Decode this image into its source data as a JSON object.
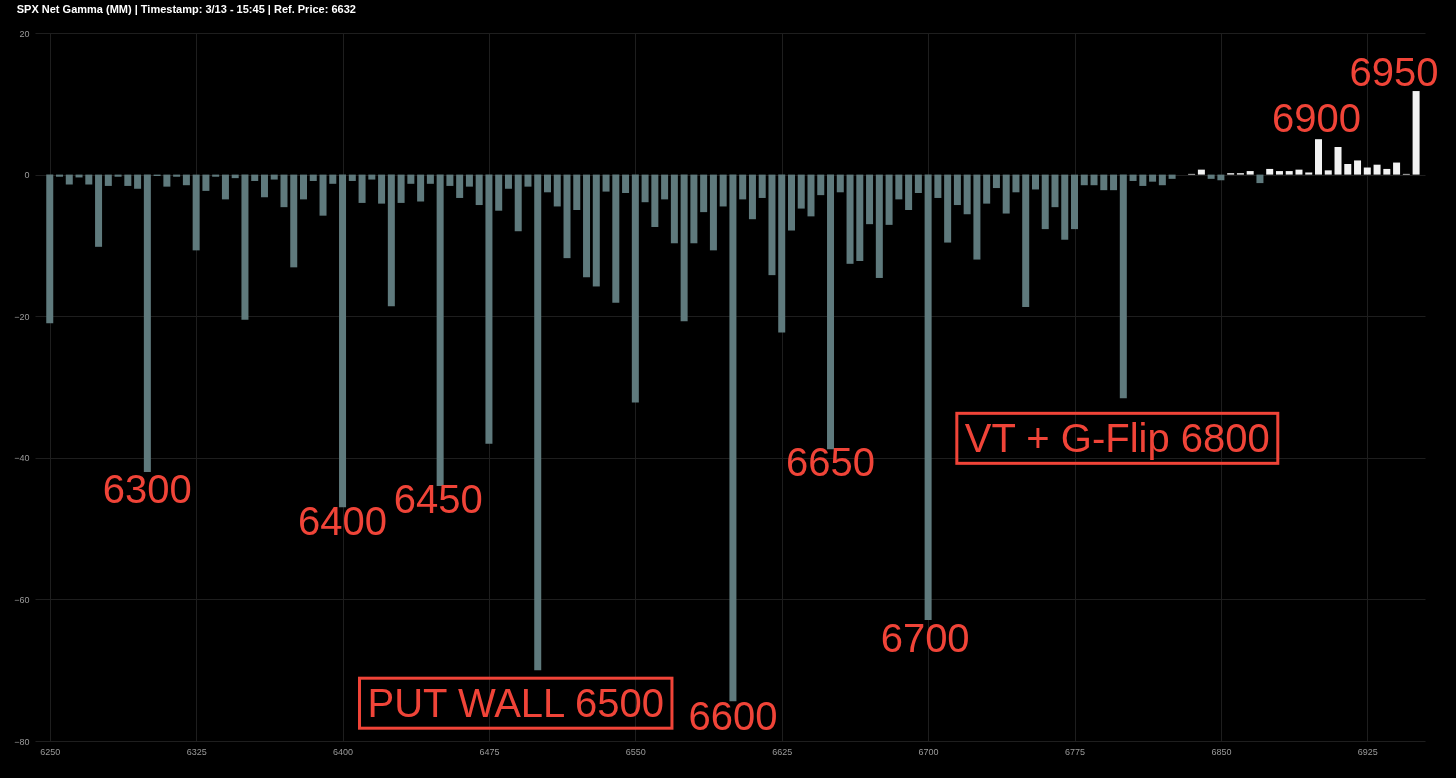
{
  "chart_data": {
    "type": "bar",
    "title": "SPX Net Gamma (MM) | Timestamp: 3/13 - 15:45  | Ref. Price: 6632",
    "x": [
      6250,
      6255,
      6260,
      6265,
      6270,
      6275,
      6280,
      6285,
      6290,
      6295,
      6300,
      6305,
      6310,
      6315,
      6320,
      6325,
      6330,
      6335,
      6340,
      6345,
      6350,
      6355,
      6360,
      6365,
      6370,
      6375,
      6380,
      6385,
      6390,
      6395,
      6400,
      6405,
      6410,
      6415,
      6420,
      6425,
      6430,
      6435,
      6440,
      6445,
      6450,
      6455,
      6460,
      6465,
      6470,
      6475,
      6480,
      6485,
      6490,
      6495,
      6500,
      6505,
      6510,
      6515,
      6520,
      6525,
      6530,
      6535,
      6540,
      6545,
      6550,
      6555,
      6560,
      6565,
      6570,
      6575,
      6580,
      6585,
      6590,
      6595,
      6600,
      6605,
      6610,
      6615,
      6620,
      6625,
      6630,
      6635,
      6640,
      6645,
      6650,
      6655,
      6660,
      6665,
      6670,
      6675,
      6680,
      6685,
      6690,
      6695,
      6700,
      6705,
      6710,
      6715,
      6720,
      6725,
      6730,
      6735,
      6740,
      6745,
      6750,
      6755,
      6760,
      6765,
      6770,
      6775,
      6780,
      6785,
      6790,
      6795,
      6800,
      6805,
      6810,
      6815,
      6820,
      6825,
      6830,
      6835,
      6840,
      6845,
      6850,
      6855,
      6860,
      6865,
      6870,
      6875,
      6880,
      6885,
      6890,
      6895,
      6900,
      6905,
      6910,
      6915,
      6920,
      6925,
      6930,
      6935,
      6940,
      6945,
      6950
    ],
    "values": [
      -21,
      -0.3,
      -1.4,
      -0.4,
      -1.4,
      -10.2,
      -1.6,
      -0.3,
      -1.6,
      -2.0,
      -42,
      -0.2,
      -1.7,
      -0.3,
      -1.5,
      -10.7,
      -2.3,
      -0.3,
      -3.5,
      -0.5,
      -20.5,
      -0.9,
      -3.2,
      -0.7,
      -4.6,
      -13.1,
      -3.5,
      -0.9,
      -5.8,
      -1.3,
      -47,
      -0.9,
      -4.0,
      -0.7,
      -4.1,
      -18.6,
      -4.0,
      -1.3,
      -3.8,
      -1.3,
      -44,
      -1.6,
      -3.3,
      -1.7,
      -4.3,
      -38,
      -5.1,
      -2.0,
      -8.0,
      -1.7,
      -70,
      -2.5,
      -4.5,
      -11.8,
      -5.0,
      -14.5,
      -15.8,
      -2.4,
      -18.1,
      -2.6,
      -32.2,
      -3.9,
      -7.4,
      -3.5,
      -9.7,
      -20.7,
      -9.7,
      -5.3,
      -10.7,
      -4.5,
      -74.4,
      -3.5,
      -6.3,
      -3.3,
      -14.2,
      -22.3,
      -7.9,
      -4.8,
      -5.9,
      -2.9,
      -38.8,
      -2.5,
      -12.6,
      -12.2,
      -7.0,
      -14.6,
      -7.1,
      -3.5,
      -5.0,
      -2.6,
      -62.9,
      -3.3,
      -9.6,
      -4.3,
      -5.6,
      -12.0,
      -4.1,
      -1.9,
      -5.5,
      -2.5,
      -18.7,
      -2.1,
      -7.7,
      -4.6,
      -9.2,
      -7.7,
      -1.5,
      -1.5,
      -2.2,
      -2.2,
      -31.6,
      -0.9,
      -1.6,
      -1.0,
      -1.5,
      -0.6,
      null,
      0.1,
      0.7,
      -0.6,
      -0.8,
      0.2,
      0.2,
      0.5,
      -1.2,
      0.8,
      0.5,
      0.5,
      0.7,
      0.3,
      5.0,
      0.6,
      3.9,
      1.5,
      2.0,
      1.0,
      1.4,
      0.8,
      1.7,
      0.1,
      11.8
    ],
    "colors": [
      "#5f7a7d",
      "#5f7a7d",
      "#5f7a7d",
      "#5f7a7d",
      "#5f7a7d",
      "#5f7a7d",
      "#5f7a7d",
      "#5f7a7d",
      "#5f7a7d",
      "#5f7a7d",
      "#5f7a7d",
      "#5f7a7d",
      "#5f7a7d",
      "#5f7a7d",
      "#5f7a7d",
      "#5f7a7d",
      "#5f7a7d",
      "#5f7a7d",
      "#5f7a7d",
      "#5f7a7d",
      "#5f7a7d",
      "#5f7a7d",
      "#5f7a7d",
      "#5f7a7d",
      "#5f7a7d",
      "#5f7a7d",
      "#5f7a7d",
      "#5f7a7d",
      "#5f7a7d",
      "#5f7a7d",
      "#5f7a7d",
      "#5f7a7d",
      "#5f7a7d",
      "#5f7a7d",
      "#5f7a7d",
      "#5f7a7d",
      "#5f7a7d",
      "#5f7a7d",
      "#5f7a7d",
      "#5f7a7d",
      "#5f7a7d",
      "#5f7a7d",
      "#5f7a7d",
      "#5f7a7d",
      "#5f7a7d",
      "#5f7a7d",
      "#5f7a7d",
      "#5f7a7d",
      "#5f7a7d",
      "#5f7a7d",
      "#5f7a7d",
      "#5f7a7d",
      "#5f7a7d",
      "#5f7a7d",
      "#5f7a7d",
      "#5f7a7d",
      "#5f7a7d",
      "#5f7a7d",
      "#5f7a7d",
      "#5f7a7d",
      "#5f7a7d",
      "#5f7a7d",
      "#5f7a7d",
      "#5f7a7d",
      "#5f7a7d",
      "#5f7a7d",
      "#5f7a7d",
      "#5f7a7d",
      "#5f7a7d",
      "#5f7a7d",
      "#5f7a7d",
      "#5f7a7d",
      "#5f7a7d",
      "#5f7a7d",
      "#5f7a7d",
      "#5f7a7d",
      "#5f7a7d",
      "#5f7a7d",
      "#5f7a7d",
      "#5f7a7d",
      "#5f7a7d",
      "#5f7a7d",
      "#5f7a7d",
      "#5f7a7d",
      "#5f7a7d",
      "#5f7a7d",
      "#5f7a7d",
      "#5f7a7d",
      "#5f7a7d",
      "#5f7a7d",
      "#5f7a7d",
      "#5f7a7d",
      "#5f7a7d",
      "#5f7a7d",
      "#5f7a7d",
      "#5f7a7d",
      "#5f7a7d",
      "#5f7a7d",
      "#5f7a7d",
      "#5f7a7d",
      "#5f7a7d",
      "#5f7a7d",
      "#5f7a7d",
      "#5f7a7d",
      "#5f7a7d",
      "#5f7a7d",
      "#5f7a7d",
      "#5f7a7d",
      "#5f7a7d",
      "#5f7a7d",
      "#5f7a7d",
      "#5f7a7d",
      "#5f7a7d",
      "#5f7a7d",
      "#5f7a7d",
      "#5f7a7d",
      "#5f7a7d",
      "#f2f2f2",
      "#f2f2f2",
      "#5f7a7d",
      "#5f7a7d",
      "#f2f2f2",
      "#f2f2f2",
      "#f2f2f2",
      "#5f7a7d",
      "#f2f2f2",
      "#f2f2f2",
      "#f2f2f2",
      "#f2f2f2",
      "#f2f2f2",
      "#f2f2f2",
      "#f2f2f2",
      "#f2f2f2",
      "#f2f2f2",
      "#f2f2f2",
      "#f2f2f2",
      "#f2f2f2",
      "#f2f2f2",
      "#f2f2f2",
      "#f2f2f2",
      "#f2f2f2"
    ],
    "xlim": [
      6245,
      6952
    ],
    "xticks": [
      6250,
      6325,
      6400,
      6475,
      6550,
      6625,
      6700,
      6775,
      6850,
      6925
    ],
    "ylim": [
      -80,
      20
    ],
    "yticks": [
      -80,
      -60,
      -40,
      -20,
      0,
      20
    ],
    "grid": true,
    "annotations": [
      {
        "text": "6300",
        "x": 6300,
        "y": -42
      },
      {
        "text": "6400",
        "x": 6400,
        "y": -47
      },
      {
        "text": "6450",
        "x": 6450,
        "y": -44
      },
      {
        "text": "PUT WALL 6500",
        "x": 6500,
        "y": -70
      },
      {
        "text": "6600",
        "x": 6600,
        "y": -74.4
      },
      {
        "text": "6650",
        "x": 6650,
        "y": -38.8
      },
      {
        "text": "6700",
        "x": 6700,
        "y": -62.9
      },
      {
        "text": "VT + G-Flip 6800",
        "x": 6800,
        "y": -31.6
      },
      {
        "text": "6900",
        "x": 6900,
        "y": 5.0
      },
      {
        "text": "6950",
        "x": 6950,
        "y": 11.8
      }
    ]
  }
}
